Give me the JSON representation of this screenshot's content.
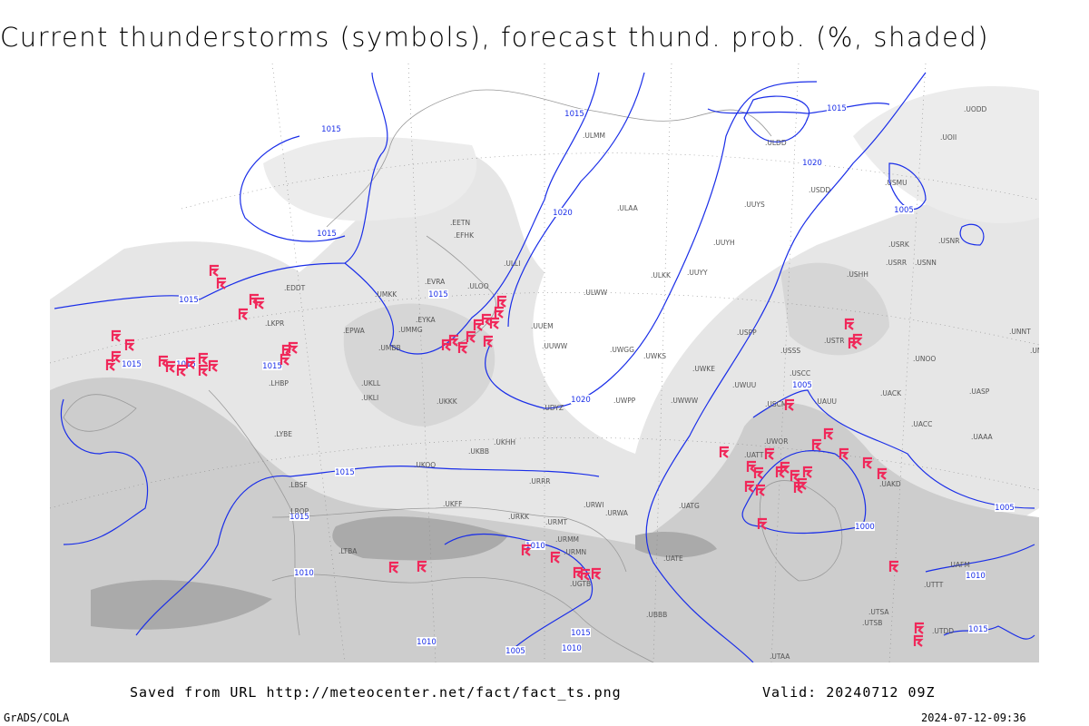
{
  "title": "Current thunderstorms (symbols), forecast thund. prob. (%, shaded)",
  "footer": {
    "saved_from": "Saved from URL http://meteocenter.net/fact/fact_ts.png",
    "valid": "Valid: 20240712 09Z",
    "credit": "GrADS/COLA",
    "timestamp": "2024-07-12-09:36"
  },
  "colors": {
    "isobar": "#1a2ee8",
    "thunderstorm_symbol": "#f0285a",
    "shading_light": "#e6e6e6",
    "shading_mid": "#cdcdcd",
    "shading_dark": "#aaaaaa",
    "coastline": "#999999"
  },
  "legend": {
    "symbol_meaning": "Current thunderstorms",
    "shading_meaning": "forecast thund. prob. (%)"
  },
  "isobar_labels": [
    "1015",
    "1015",
    "1015",
    "1015",
    "1015",
    "1015",
    "1015",
    "1015",
    "1015",
    "1015",
    "1020",
    "1020",
    "1020",
    "1015",
    "1005",
    "1005",
    "1000",
    "1005",
    "1010",
    "1010",
    "1010",
    "1005",
    "1010",
    "1015",
    "1015",
    "1010"
  ],
  "stations": [
    "ULOO",
    "ULLI",
    "ULAA",
    "ULMM",
    "UUYS",
    "UUYH",
    "ULKK",
    "UUYY",
    "ULWW",
    "UUEM",
    "UUWW",
    "UWGG",
    "UWKS",
    "UWKE",
    "UWUU",
    "UWWW",
    "UWPP",
    "EFHK",
    "EETN",
    "EVRA",
    "UMKK",
    "EYKA",
    "EPWA",
    "UMMG",
    "UMBB",
    "UKLL",
    "UKLI",
    "UKKK",
    "UKBB",
    "UKHH",
    "UKOO",
    "UKFF",
    "URRR",
    "URKK",
    "URMT",
    "URMM",
    "URMN",
    "URWI",
    "URWA",
    "UGTB",
    "UBBB",
    "LTBA",
    "LBSF",
    "LROP",
    "LYBE",
    "LHBP",
    "LKPR",
    "EDDT",
    "UDYZ",
    "UATT",
    "UWOR",
    "USCC",
    "USCM",
    "UAUU",
    "UACC",
    "UAKD",
    "UATG",
    "UATE",
    "USSS",
    "USTR",
    "USHH",
    "UNNT",
    "UNBB",
    "UNOO",
    "UASP",
    "UACK",
    "UAAA",
    "UTAA",
    "UTSA",
    "UTSB",
    "UTDD",
    "UTTT",
    "UAFM",
    "ULDD",
    "USDD",
    "UODD",
    "UOII",
    "USNR",
    "USRR",
    "USNN",
    "USRK",
    "USMU",
    "USPP"
  ]
}
